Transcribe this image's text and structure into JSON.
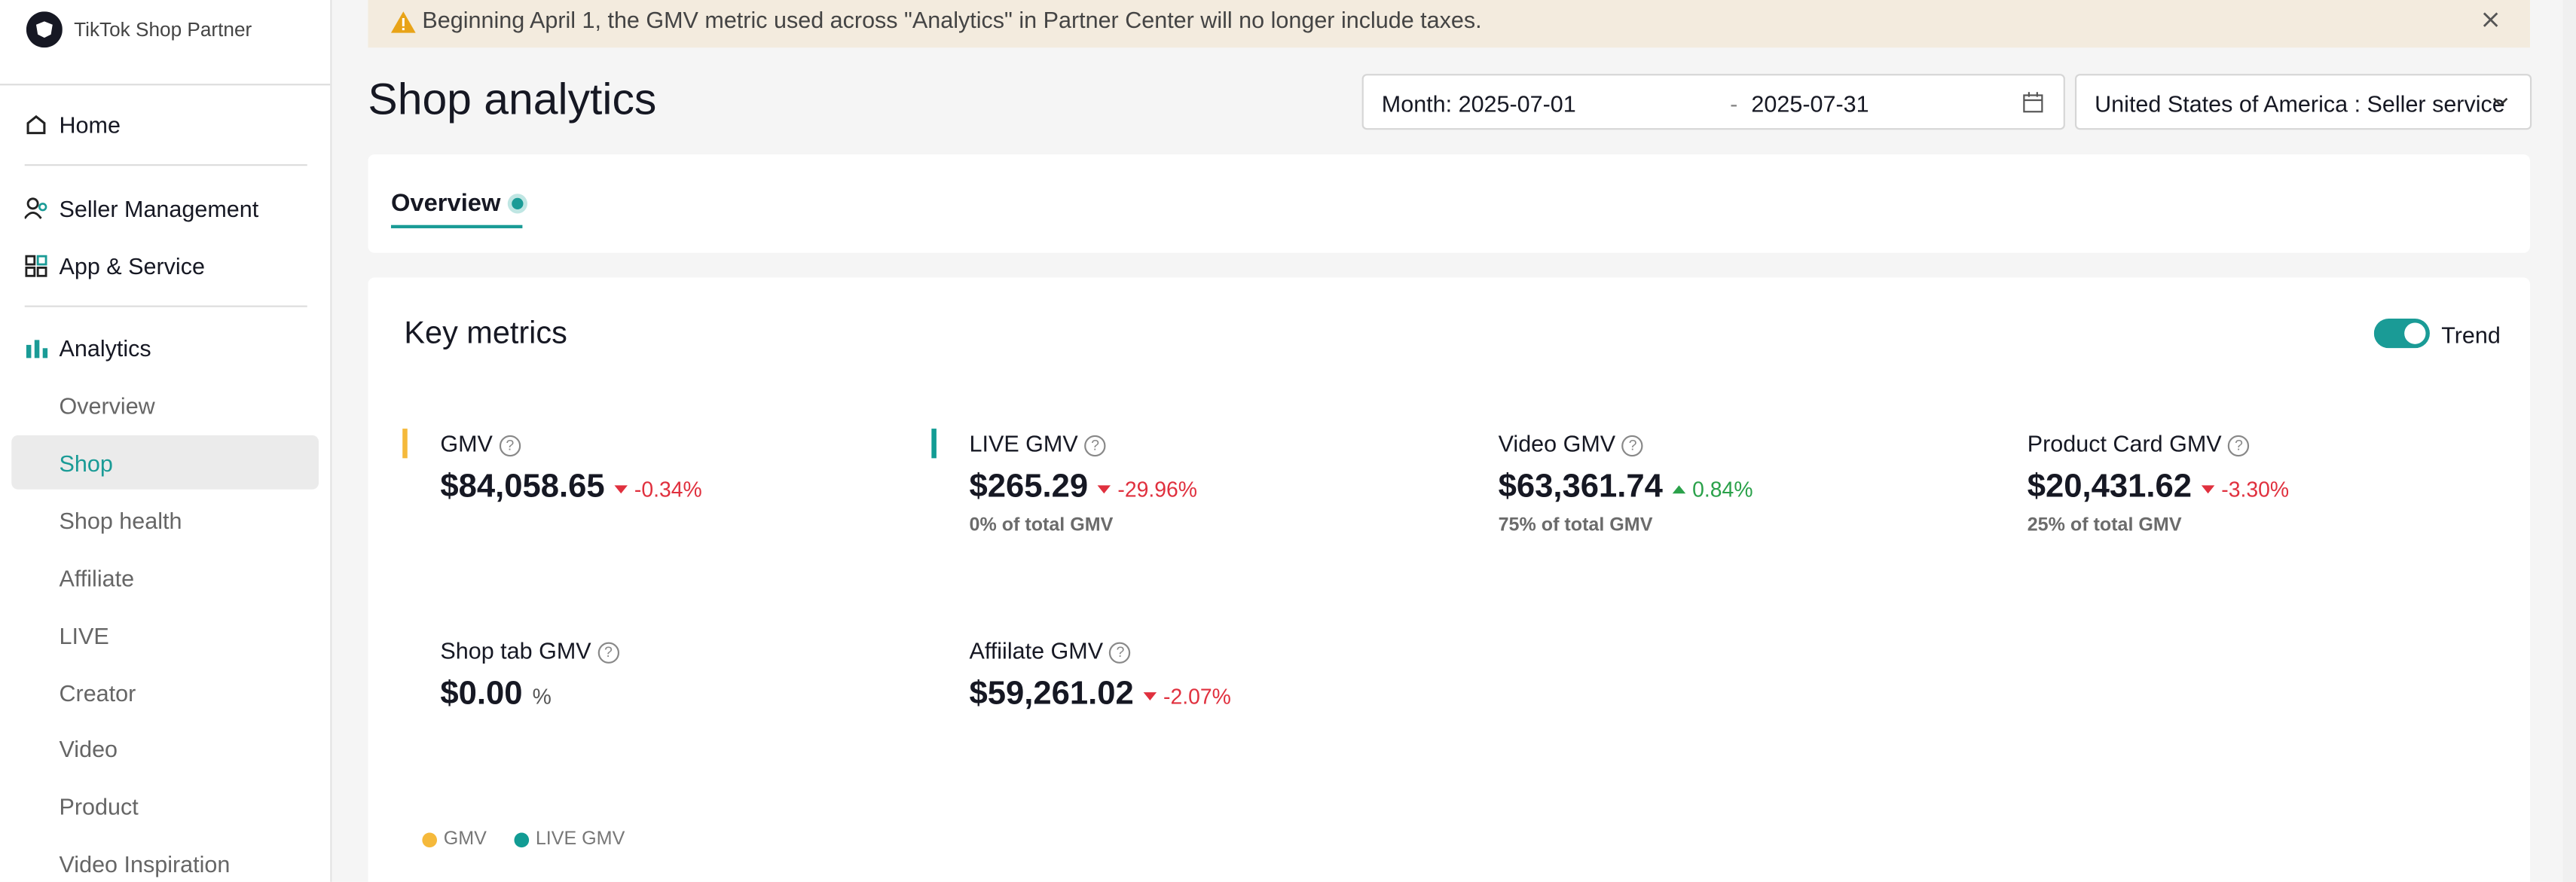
{
  "sidebar": {
    "brand": "TikTok Shop Partner",
    "nav": [
      "Home",
      "Seller Management",
      "App & Service",
      "Analytics"
    ],
    "subnav": [
      "Overview",
      "Shop",
      "Shop health",
      "Affiliate",
      "LIVE",
      "Creator",
      "Video",
      "Product",
      "Video Inspiration"
    ]
  },
  "banner": {
    "text": "Beginning April 1, the GMV metric used across \"Analytics\" in Partner Center will no longer include taxes."
  },
  "header": {
    "title": "Shop analytics",
    "date_start": "Month: 2025-07-01",
    "separator": "-",
    "date_end": "2025-07-31",
    "region": "United States of America : Seller service"
  },
  "tabs": [
    "Overview"
  ],
  "key_metrics": {
    "title": "Key metrics",
    "toggle_label": "Trend",
    "metrics": [
      {
        "name": "GMV",
        "value": "$84,058.65",
        "change": "-0.34%"
      },
      {
        "name": "LIVE GMV",
        "value": "$265.29",
        "change": "-29.96%",
        "share": "0% of total GMV"
      },
      {
        "name": "Video GMV",
        "value": "$63,361.74",
        "change": "0.84%",
        "share": "75% of total GMV"
      },
      {
        "name": "Product Card GMV",
        "value": "$20,431.62",
        "change": "-3.30%",
        "share": "25% of total GMV"
      },
      {
        "name": "Shop tab GMV",
        "value": "$0.00",
        "change": "%"
      },
      {
        "name": "Affiilate GMV",
        "value": "$59,261.02",
        "change": "-2.07%"
      }
    ],
    "legend": [
      "GMV",
      "LIVE GMV"
    ]
  }
}
